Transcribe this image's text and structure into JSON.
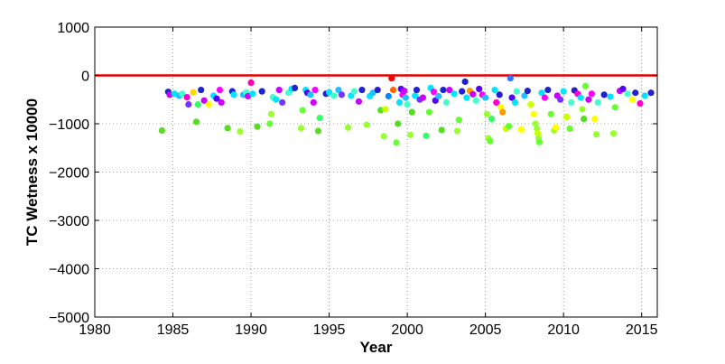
{
  "chart_data": {
    "type": "scatter",
    "title": "",
    "xlabel": "Year",
    "ylabel": "TC Wetness x 10000",
    "xlim": [
      1980,
      2016
    ],
    "ylim": [
      -5000,
      1000
    ],
    "xticks": [
      1980,
      1985,
      1990,
      1995,
      2000,
      2005,
      2010,
      2015
    ],
    "yticks": [
      1000,
      0,
      -1000,
      -2000,
      -3000,
      -4000,
      -5000
    ],
    "xtick_labels": [
      "1980",
      "1985",
      "1990",
      "1995",
      "2000",
      "2005",
      "2010",
      "2015"
    ],
    "ytick_labels": [
      "1000",
      "0",
      "−1000",
      "−2000",
      "−3000",
      "−4000",
      "−5000"
    ],
    "grid": true,
    "grid_style": "dotted",
    "reference_line": {
      "y": 0,
      "color": "#e60000"
    },
    "legend": "none",
    "points": [
      [
        1984.3,
        -1140,
        "#55dd22"
      ],
      [
        1984.7,
        -340,
        "#2222cc"
      ],
      [
        1984.8,
        -400,
        "#cc00ff"
      ],
      [
        1985.1,
        -380,
        "#00e5ff"
      ],
      [
        1985.4,
        -420,
        "#22c0ff"
      ],
      [
        1985.6,
        -380,
        "#44ffcc"
      ],
      [
        1985.9,
        -450,
        "#ff00cc"
      ],
      [
        1986.0,
        -600,
        "#7733ff"
      ],
      [
        1986.3,
        -350,
        "#ffd700"
      ],
      [
        1986.5,
        -960,
        "#55dd22"
      ],
      [
        1986.6,
        -600,
        "#33ff66"
      ],
      [
        1986.8,
        -300,
        "#2222cc"
      ],
      [
        1987.0,
        -520,
        "#cc00ff"
      ],
      [
        1987.3,
        -600,
        "#ffff00"
      ],
      [
        1987.6,
        -420,
        "#00e5ff"
      ],
      [
        1987.8,
        -480,
        "#5500ff"
      ],
      [
        1988.0,
        -300,
        "#ff00ff"
      ],
      [
        1988.1,
        -560,
        "#cc00ff"
      ],
      [
        1988.5,
        -1090,
        "#55dd22"
      ],
      [
        1988.8,
        -330,
        "#2222cc"
      ],
      [
        1988.9,
        -400,
        "#00e5ff"
      ],
      [
        1989.3,
        -1160,
        "#99ff33"
      ],
      [
        1989.5,
        -400,
        "#22c0ff"
      ],
      [
        1989.7,
        -350,
        "#44ffcc"
      ],
      [
        1989.8,
        -430,
        "#cc00ff"
      ],
      [
        1990.0,
        -150,
        "#ff00aa"
      ],
      [
        1990.1,
        -380,
        "#00e5ff"
      ],
      [
        1990.4,
        -1060,
        "#55dd22"
      ],
      [
        1990.7,
        -330,
        "#2222cc"
      ],
      [
        1991.2,
        -1000,
        "#66ff33"
      ],
      [
        1991.3,
        -800,
        "#99ff33"
      ],
      [
        1991.4,
        -450,
        "#44ffcc"
      ],
      [
        1991.6,
        -500,
        "#00e5ff"
      ],
      [
        1991.8,
        -300,
        "#cc00ff"
      ],
      [
        1992.0,
        -560,
        "#7733ff"
      ],
      [
        1992.4,
        -360,
        "#44ffcc"
      ],
      [
        1992.6,
        -280,
        "#00e5ff"
      ],
      [
        1992.8,
        -260,
        "#2222cc"
      ],
      [
        1993.2,
        -1090,
        "#99ff33"
      ],
      [
        1993.3,
        -720,
        "#66ff33"
      ],
      [
        1993.5,
        -300,
        "#00e5ff"
      ],
      [
        1993.6,
        -360,
        "#5500ff"
      ],
      [
        1993.8,
        -400,
        "#22c0ff"
      ],
      [
        1994.0,
        -560,
        "#cc00ff"
      ],
      [
        1994.1,
        -300,
        "#ff00ff"
      ],
      [
        1994.3,
        -1150,
        "#55dd22"
      ],
      [
        1994.4,
        -880,
        "#33ff66"
      ],
      [
        1994.8,
        -380,
        "#2222cc"
      ],
      [
        1995.0,
        -350,
        "#00e5ff"
      ],
      [
        1995.3,
        -420,
        "#44ffcc"
      ],
      [
        1995.6,
        -300,
        "#22c0ff"
      ],
      [
        1995.8,
        -400,
        "#7733ff"
      ],
      [
        1996.2,
        -1080,
        "#99ff33"
      ],
      [
        1996.4,
        -420,
        "#00e5ff"
      ],
      [
        1996.6,
        -330,
        "#44ffcc"
      ],
      [
        1996.9,
        -540,
        "#cc00ff"
      ],
      [
        1997.1,
        -300,
        "#2222cc"
      ],
      [
        1997.4,
        -1020,
        "#99ff33"
      ],
      [
        1997.6,
        -430,
        "#00e5ff"
      ],
      [
        1997.8,
        -360,
        "#22c0ff"
      ],
      [
        1998.1,
        -300,
        "#2222cc"
      ],
      [
        1998.3,
        -720,
        "#55dd22"
      ],
      [
        1998.5,
        -1260,
        "#99ff33"
      ],
      [
        1998.6,
        -700,
        "#ccff00"
      ],
      [
        1998.8,
        -430,
        "#0088ff"
      ],
      [
        1999.0,
        -60,
        "#ff0000"
      ],
      [
        1999.1,
        -300,
        "#ff6600"
      ],
      [
        1999.3,
        -1390,
        "#66ff33"
      ],
      [
        1999.4,
        -1000,
        "#55dd22"
      ],
      [
        1999.5,
        -560,
        "#00e5ff"
      ],
      [
        1999.6,
        -280,
        "#5500ff"
      ],
      [
        1999.7,
        -400,
        "#ff00ff"
      ],
      [
        1999.8,
        -320,
        "#cc00ff"
      ],
      [
        1999.9,
        -460,
        "#22c0ff"
      ],
      [
        2000.0,
        -600,
        "#44ffcc"
      ],
      [
        2000.2,
        -1230,
        "#99ff33"
      ],
      [
        2000.3,
        -760,
        "#55dd22"
      ],
      [
        2000.5,
        -420,
        "#00e5ff"
      ],
      [
        2000.6,
        -300,
        "#2222cc"
      ],
      [
        2000.8,
        -500,
        "#7733ff"
      ],
      [
        2001.0,
        -460,
        "#cc00ff"
      ],
      [
        2001.2,
        -1250,
        "#33ff66"
      ],
      [
        2001.4,
        -760,
        "#66ff33"
      ],
      [
        2001.5,
        -260,
        "#00e5ff"
      ],
      [
        2001.7,
        -340,
        "#ff00ff"
      ],
      [
        2001.8,
        -520,
        "#5500ff"
      ],
      [
        2002.0,
        -430,
        "#22c0ff"
      ],
      [
        2002.2,
        -1130,
        "#55dd22"
      ],
      [
        2002.3,
        -300,
        "#2222cc"
      ],
      [
        2002.5,
        -560,
        "#44ffcc"
      ],
      [
        2002.7,
        -300,
        "#cc00ff"
      ],
      [
        2003.0,
        -380,
        "#00e5ff"
      ],
      [
        2003.2,
        -1150,
        "#99ff33"
      ],
      [
        2003.3,
        -920,
        "#66ff33"
      ],
      [
        2003.5,
        -330,
        "#2222cc"
      ],
      [
        2003.7,
        -130,
        "#2222cc"
      ],
      [
        2003.8,
        -460,
        "#00e5ff"
      ],
      [
        2004.0,
        -320,
        "#ff9900"
      ],
      [
        2004.2,
        -390,
        "#cc00ff"
      ],
      [
        2004.4,
        -520,
        "#44ffcc"
      ],
      [
        2004.6,
        -280,
        "#5500ff"
      ],
      [
        2004.8,
        -400,
        "#ff00ff"
      ],
      [
        2005.0,
        -460,
        "#22c0ff"
      ],
      [
        2005.1,
        -800,
        "#99ff33"
      ],
      [
        2005.2,
        -1300,
        "#99ff33"
      ],
      [
        2005.3,
        -1360,
        "#66ff33"
      ],
      [
        2005.4,
        -900,
        "#33ff66"
      ],
      [
        2005.6,
        -300,
        "#00e5ff"
      ],
      [
        2005.7,
        -560,
        "#ff00cc"
      ],
      [
        2005.9,
        -400,
        "#2222cc"
      ],
      [
        2006.0,
        -660,
        "#ffff00"
      ],
      [
        2006.1,
        -760,
        "#ff9900"
      ],
      [
        2006.3,
        -1100,
        "#ccff00"
      ],
      [
        2006.5,
        -1050,
        "#66ff33"
      ],
      [
        2006.6,
        -60,
        "#3377ff"
      ],
      [
        2006.7,
        -460,
        "#5500ff"
      ],
      [
        2006.9,
        -560,
        "#00e5ff"
      ],
      [
        2007.0,
        -330,
        "#44ffcc"
      ],
      [
        2007.3,
        -1120,
        "#ffff00"
      ],
      [
        2007.5,
        -420,
        "#22c0ff"
      ],
      [
        2007.7,
        -320,
        "#2222cc"
      ],
      [
        2007.9,
        -600,
        "#ccff00"
      ],
      [
        2008.1,
        -800,
        "#ffff00"
      ],
      [
        2008.2,
        -1000,
        "#99ff33"
      ],
      [
        2008.3,
        -1100,
        "#99ff33"
      ],
      [
        2008.35,
        -1200,
        "#ccff00"
      ],
      [
        2008.4,
        -1300,
        "#99ff33"
      ],
      [
        2008.45,
        -1380,
        "#66ff33"
      ],
      [
        2008.6,
        -360,
        "#00e5ff"
      ],
      [
        2008.8,
        -460,
        "#ff00ff"
      ],
      [
        2009.0,
        -300,
        "#2222cc"
      ],
      [
        2009.2,
        -800,
        "#66ff33"
      ],
      [
        2009.4,
        -1140,
        "#99ff33"
      ],
      [
        2009.5,
        -1080,
        "#ffff00"
      ],
      [
        2009.6,
        -420,
        "#cc00ff"
      ],
      [
        2009.8,
        -500,
        "#7733ff"
      ],
      [
        2010.0,
        -330,
        "#00e5ff"
      ],
      [
        2010.2,
        -860,
        "#ccff00"
      ],
      [
        2010.4,
        -1100,
        "#66ff33"
      ],
      [
        2010.5,
        -560,
        "#44ffcc"
      ],
      [
        2010.7,
        -310,
        "#2222cc"
      ],
      [
        2010.9,
        -380,
        "#ff00cc"
      ],
      [
        2011.1,
        -460,
        "#00e5ff"
      ],
      [
        2011.2,
        -700,
        "#99ff33"
      ],
      [
        2011.3,
        -900,
        "#55dd22"
      ],
      [
        2011.4,
        -220,
        "#66ff33"
      ],
      [
        2011.6,
        -500,
        "#cc00ff"
      ],
      [
        2011.8,
        -380,
        "#ff00ff"
      ],
      [
        2012.0,
        -900,
        "#ffff00"
      ],
      [
        2012.1,
        -1220,
        "#99ff33"
      ],
      [
        2012.2,
        -560,
        "#44ffcc"
      ],
      [
        2012.6,
        -400,
        "#2222cc"
      ],
      [
        2013.0,
        -440,
        "#00e5ff"
      ],
      [
        2013.2,
        -1200,
        "#99ff33"
      ],
      [
        2013.3,
        -660,
        "#66ff33"
      ],
      [
        2013.6,
        -320,
        "#cc00ff"
      ],
      [
        2013.8,
        -280,
        "#5500ff"
      ],
      [
        2014.1,
        -380,
        "#44ffcc"
      ],
      [
        2014.4,
        -500,
        "#ffff00"
      ],
      [
        2014.6,
        -360,
        "#2222cc"
      ],
      [
        2014.9,
        -580,
        "#ff00cc"
      ],
      [
        2015.2,
        -420,
        "#00e5ff"
      ],
      [
        2015.6,
        -360,
        "#2222cc"
      ]
    ]
  }
}
